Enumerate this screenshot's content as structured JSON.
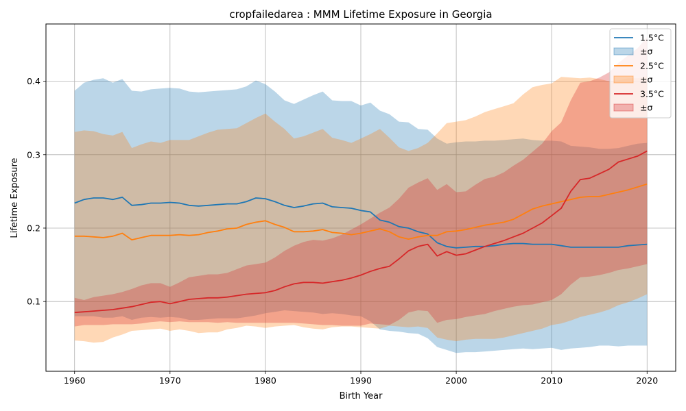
{
  "chart_data": {
    "type": "line",
    "title": "cropfailedarea : MMM Lifetime Exposure in Georgia",
    "xlabel": "Birth Year",
    "ylabel": "Lifetime Exposure",
    "xlim": [
      1957,
      2023
    ],
    "ylim": [
      0.005,
      0.478
    ],
    "xticks": [
      1960,
      1970,
      1980,
      1990,
      2000,
      2010,
      2020
    ],
    "yticks": [
      0.1,
      0.2,
      0.3,
      0.4
    ],
    "grid": true,
    "legend_position": "top-right",
    "years": [
      1960,
      1961,
      1962,
      1963,
      1964,
      1965,
      1966,
      1967,
      1968,
      1969,
      1970,
      1971,
      1972,
      1973,
      1974,
      1975,
      1976,
      1977,
      1978,
      1979,
      1980,
      1981,
      1982,
      1983,
      1984,
      1985,
      1986,
      1987,
      1988,
      1989,
      1990,
      1991,
      1992,
      1993,
      1994,
      1995,
      1996,
      1997,
      1998,
      1999,
      2000,
      2001,
      2002,
      2003,
      2004,
      2005,
      2006,
      2007,
      2008,
      2009,
      2010,
      2011,
      2012,
      2013,
      2014,
      2015,
      2016,
      2017,
      2018,
      2019,
      2020
    ],
    "series": [
      {
        "name": "1.5°C",
        "band_name": "±σ",
        "color": "#1f77b4",
        "mean": [
          0.234,
          0.239,
          0.241,
          0.241,
          0.239,
          0.242,
          0.231,
          0.232,
          0.234,
          0.234,
          0.235,
          0.234,
          0.231,
          0.23,
          0.231,
          0.232,
          0.233,
          0.233,
          0.236,
          0.241,
          0.24,
          0.236,
          0.231,
          0.228,
          0.23,
          0.233,
          0.234,
          0.229,
          0.228,
          0.227,
          0.224,
          0.222,
          0.211,
          0.208,
          0.202,
          0.2,
          0.195,
          0.192,
          0.18,
          0.175,
          0.173,
          0.174,
          0.175,
          0.175,
          0.176,
          0.178,
          0.179,
          0.179,
          0.178,
          0.178,
          0.178,
          0.176,
          0.174,
          0.174,
          0.174,
          0.174,
          0.174,
          0.174,
          0.176,
          0.177,
          0.178
        ],
        "upper": [
          0.387,
          0.398,
          0.402,
          0.404,
          0.398,
          0.403,
          0.387,
          0.386,
          0.389,
          0.39,
          0.391,
          0.39,
          0.386,
          0.385,
          0.386,
          0.387,
          0.388,
          0.389,
          0.393,
          0.401,
          0.396,
          0.386,
          0.374,
          0.369,
          0.375,
          0.381,
          0.386,
          0.374,
          0.373,
          0.373,
          0.367,
          0.371,
          0.36,
          0.355,
          0.345,
          0.344,
          0.335,
          0.334,
          0.322,
          0.315,
          0.317,
          0.318,
          0.318,
          0.319,
          0.319,
          0.32,
          0.321,
          0.322,
          0.32,
          0.319,
          0.319,
          0.318,
          0.312,
          0.311,
          0.31,
          0.308,
          0.308,
          0.309,
          0.312,
          0.315,
          0.316
        ],
        "lower": [
          0.08,
          0.08,
          0.08,
          0.078,
          0.078,
          0.08,
          0.075,
          0.078,
          0.079,
          0.078,
          0.079,
          0.078,
          0.075,
          0.075,
          0.076,
          0.077,
          0.077,
          0.077,
          0.079,
          0.081,
          0.084,
          0.086,
          0.088,
          0.087,
          0.086,
          0.085,
          0.083,
          0.084,
          0.083,
          0.081,
          0.08,
          0.073,
          0.062,
          0.06,
          0.059,
          0.057,
          0.056,
          0.05,
          0.038,
          0.034,
          0.03,
          0.031,
          0.031,
          0.032,
          0.033,
          0.034,
          0.035,
          0.036,
          0.035,
          0.036,
          0.037,
          0.034,
          0.036,
          0.037,
          0.038,
          0.04,
          0.04,
          0.039,
          0.04,
          0.04,
          0.04
        ]
      },
      {
        "name": "2.5°C",
        "band_name": "±σ",
        "color": "#ff7f0e",
        "mean": [
          0.189,
          0.189,
          0.188,
          0.187,
          0.189,
          0.193,
          0.184,
          0.187,
          0.19,
          0.19,
          0.19,
          0.191,
          0.19,
          0.191,
          0.194,
          0.196,
          0.199,
          0.2,
          0.205,
          0.208,
          0.21,
          0.205,
          0.201,
          0.195,
          0.195,
          0.196,
          0.198,
          0.194,
          0.193,
          0.191,
          0.193,
          0.196,
          0.199,
          0.195,
          0.188,
          0.185,
          0.188,
          0.19,
          0.19,
          0.195,
          0.196,
          0.198,
          0.201,
          0.204,
          0.206,
          0.208,
          0.212,
          0.219,
          0.226,
          0.23,
          0.233,
          0.236,
          0.239,
          0.242,
          0.243,
          0.243,
          0.246,
          0.249,
          0.252,
          0.256,
          0.26
        ],
        "upper": [
          0.331,
          0.333,
          0.332,
          0.328,
          0.326,
          0.331,
          0.309,
          0.314,
          0.318,
          0.316,
          0.32,
          0.32,
          0.32,
          0.325,
          0.33,
          0.334,
          0.335,
          0.336,
          0.343,
          0.35,
          0.356,
          0.345,
          0.335,
          0.322,
          0.325,
          0.33,
          0.335,
          0.323,
          0.32,
          0.316,
          0.322,
          0.328,
          0.335,
          0.323,
          0.31,
          0.305,
          0.309,
          0.316,
          0.329,
          0.343,
          0.345,
          0.347,
          0.352,
          0.358,
          0.362,
          0.366,
          0.37,
          0.382,
          0.392,
          0.395,
          0.397,
          0.406,
          0.405,
          0.404,
          0.405,
          0.403,
          0.4,
          0.401,
          0.404,
          0.404,
          0.407
        ],
        "lower": [
          0.047,
          0.046,
          0.044,
          0.045,
          0.051,
          0.055,
          0.06,
          0.061,
          0.062,
          0.063,
          0.06,
          0.062,
          0.06,
          0.057,
          0.058,
          0.058,
          0.062,
          0.064,
          0.067,
          0.066,
          0.064,
          0.066,
          0.067,
          0.068,
          0.065,
          0.063,
          0.062,
          0.065,
          0.066,
          0.066,
          0.065,
          0.064,
          0.063,
          0.067,
          0.066,
          0.065,
          0.066,
          0.064,
          0.051,
          0.048,
          0.046,
          0.048,
          0.049,
          0.049,
          0.049,
          0.051,
          0.054,
          0.057,
          0.06,
          0.063,
          0.068,
          0.07,
          0.074,
          0.079,
          0.082,
          0.085,
          0.089,
          0.095,
          0.099,
          0.104,
          0.11
        ]
      },
      {
        "name": "3.5°C",
        "band_name": "±σ",
        "color": "#d62728",
        "mean": [
          0.085,
          0.086,
          0.087,
          0.088,
          0.089,
          0.091,
          0.093,
          0.096,
          0.099,
          0.1,
          0.097,
          0.1,
          0.103,
          0.104,
          0.105,
          0.105,
          0.106,
          0.108,
          0.11,
          0.111,
          0.112,
          0.115,
          0.12,
          0.124,
          0.126,
          0.126,
          0.125,
          0.127,
          0.129,
          0.132,
          0.136,
          0.141,
          0.145,
          0.148,
          0.158,
          0.169,
          0.175,
          0.178,
          0.162,
          0.168,
          0.163,
          0.165,
          0.17,
          0.175,
          0.179,
          0.183,
          0.188,
          0.193,
          0.2,
          0.207,
          0.217,
          0.227,
          0.25,
          0.266,
          0.268,
          0.274,
          0.28,
          0.29,
          0.294,
          0.298,
          0.305
        ],
        "upper": [
          0.105,
          0.102,
          0.106,
          0.108,
          0.11,
          0.113,
          0.117,
          0.122,
          0.125,
          0.125,
          0.12,
          0.126,
          0.133,
          0.135,
          0.137,
          0.137,
          0.139,
          0.144,
          0.149,
          0.151,
          0.153,
          0.16,
          0.169,
          0.176,
          0.181,
          0.184,
          0.183,
          0.186,
          0.191,
          0.198,
          0.205,
          0.213,
          0.221,
          0.228,
          0.24,
          0.255,
          0.262,
          0.268,
          0.252,
          0.26,
          0.249,
          0.25,
          0.259,
          0.267,
          0.27,
          0.276,
          0.285,
          0.293,
          0.304,
          0.315,
          0.332,
          0.344,
          0.374,
          0.398,
          0.4,
          0.405,
          0.412,
          0.425,
          0.435,
          0.445,
          0.46
        ],
        "lower": [
          0.066,
          0.068,
          0.068,
          0.068,
          0.069,
          0.069,
          0.069,
          0.07,
          0.072,
          0.073,
          0.072,
          0.073,
          0.072,
          0.072,
          0.072,
          0.071,
          0.072,
          0.071,
          0.071,
          0.071,
          0.071,
          0.071,
          0.071,
          0.071,
          0.07,
          0.069,
          0.068,
          0.068,
          0.067,
          0.067,
          0.067,
          0.07,
          0.069,
          0.068,
          0.075,
          0.085,
          0.088,
          0.087,
          0.071,
          0.075,
          0.076,
          0.079,
          0.081,
          0.083,
          0.087,
          0.09,
          0.093,
          0.095,
          0.096,
          0.099,
          0.102,
          0.11,
          0.123,
          0.133,
          0.134,
          0.136,
          0.139,
          0.143,
          0.145,
          0.148,
          0.151
        ]
      }
    ]
  }
}
